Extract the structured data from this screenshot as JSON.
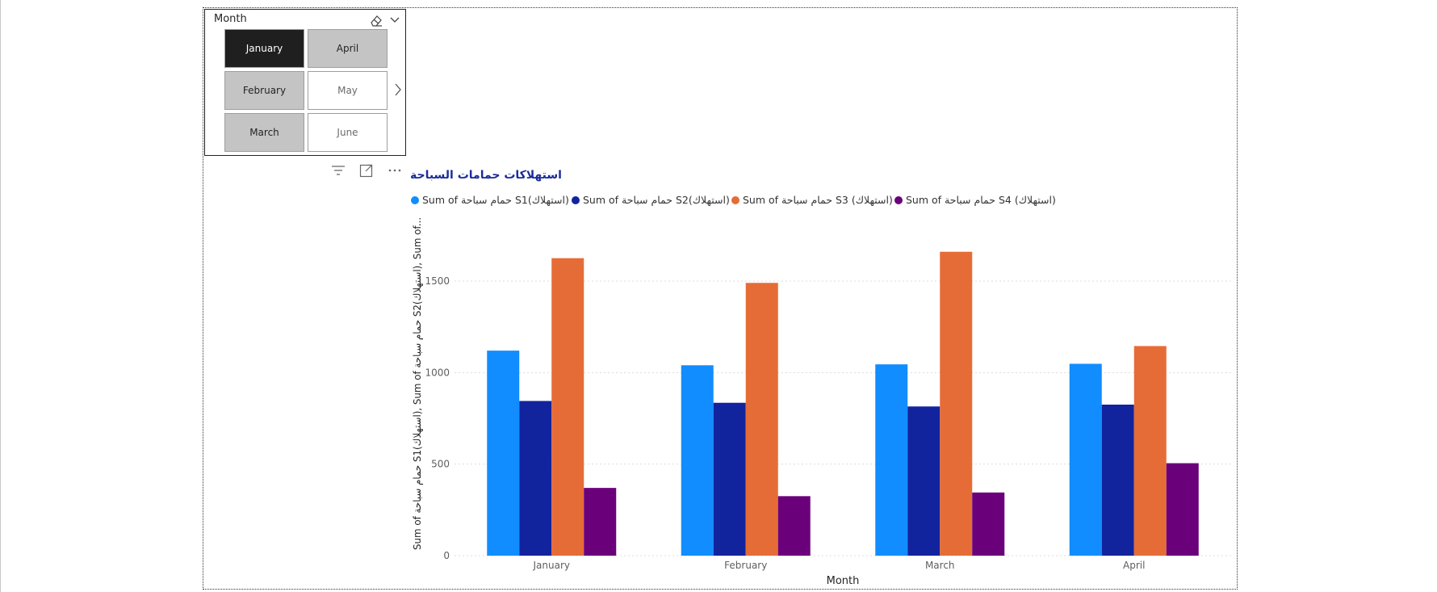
{
  "slicer": {
    "title": "Month",
    "tiles": [
      {
        "label": "January",
        "state": "active"
      },
      {
        "label": "April",
        "state": "selected"
      },
      {
        "label": "February",
        "state": "selected"
      },
      {
        "label": "May",
        "state": "unselected"
      },
      {
        "label": "March",
        "state": "selected"
      },
      {
        "label": "June",
        "state": "unselected"
      }
    ],
    "icons": [
      "eraser-icon",
      "chevron-down-icon",
      "chevron-right-icon"
    ]
  },
  "visual_header": {
    "icons": [
      "filter-icon",
      "focus-mode-icon",
      "more-options-icon"
    ]
  },
  "colors": {
    "s1": "#118dff",
    "s2": "#12239e",
    "s3": "#e66c37",
    "s4": "#6b007b",
    "title": "#1a2c9a"
  },
  "chart_data": {
    "type": "bar",
    "title": "استهلاكات حمامات السباحة",
    "xlabel": "Month",
    "ylabel": "Sum of حمام سباحة S1(استهلاك), Sum of حمام سباحة S2(استهلاك), Sum of...",
    "categories": [
      "January",
      "February",
      "March",
      "April"
    ],
    "ylim": [
      0,
      1800
    ],
    "yticks": [
      "0",
      "500",
      "1000",
      "1500"
    ],
    "grid": true,
    "legend_position": "top-left",
    "series": [
      {
        "name": "Sum of حمام سباحة S1(استهلاك)",
        "color": "#118dff",
        "values": [
          1120,
          1040,
          1045,
          1048
        ]
      },
      {
        "name": "Sum of حمام سباحة S2(استهلاك)",
        "color": "#12239e",
        "values": [
          845,
          835,
          815,
          825
        ]
      },
      {
        "name": "Sum of حمام سباحة S3 (استهلاك)",
        "color": "#e66c37",
        "values": [
          1625,
          1490,
          1660,
          1145
        ]
      },
      {
        "name": "Sum of حمام سباحة S4 (استهلاك)",
        "color": "#6b007b",
        "values": [
          370,
          325,
          345,
          505
        ]
      }
    ]
  }
}
